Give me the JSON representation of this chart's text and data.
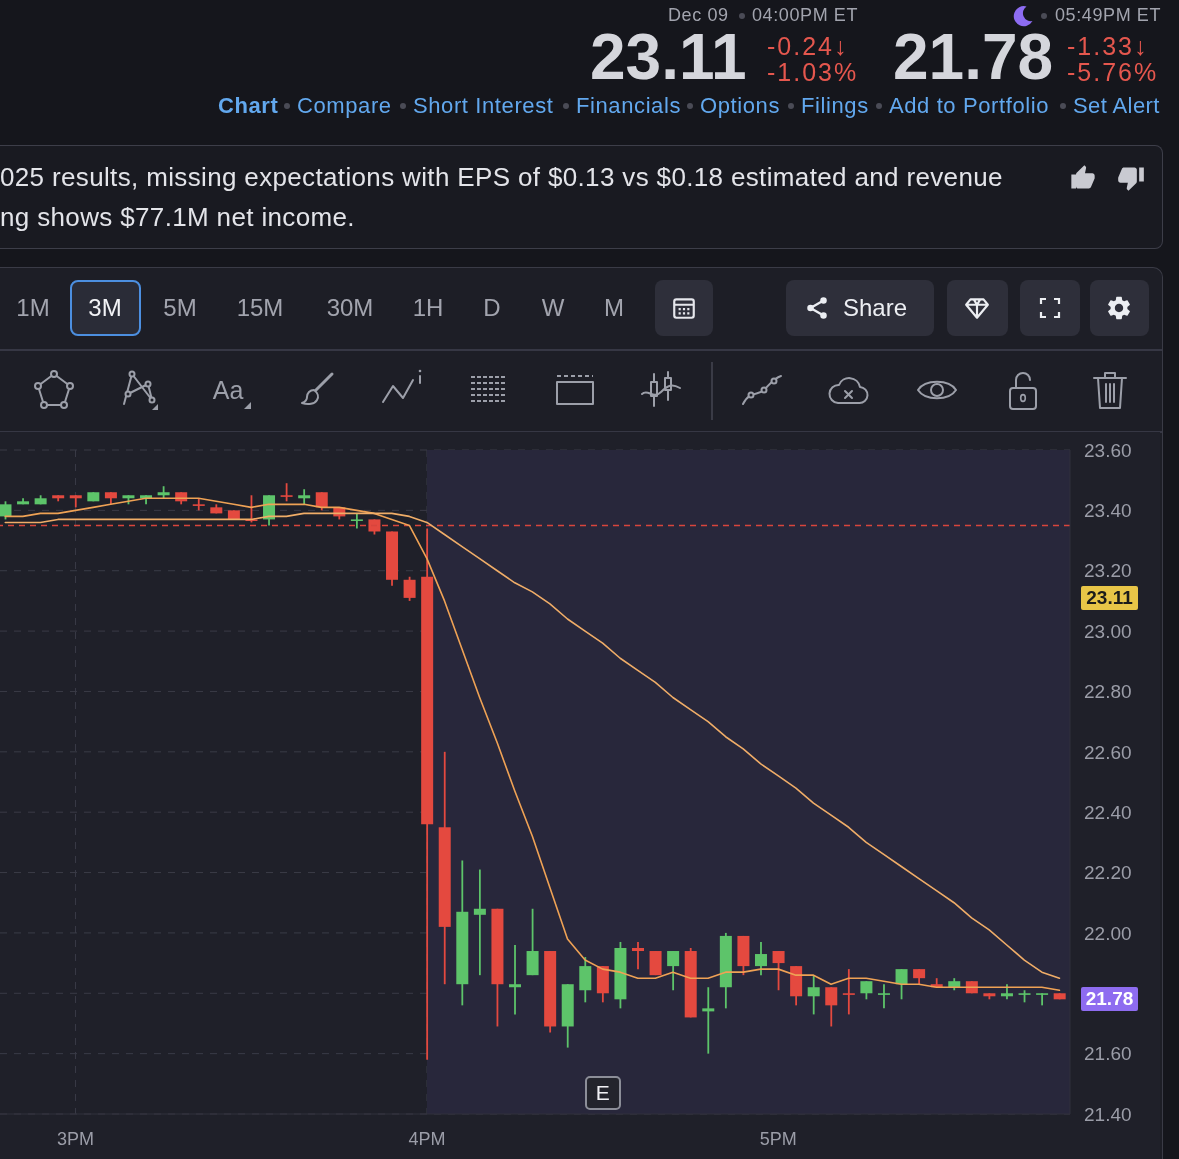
{
  "chart_data": {
    "type": "candlestick",
    "x": [
      2.8,
      2.85,
      2.9,
      2.95,
      3,
      3.05,
      3.1,
      3.15,
      3.2,
      3.25,
      3.3,
      3.35,
      3.4,
      3.45,
      3.5,
      3.55,
      3.6,
      3.65,
      3.7,
      3.75,
      3.8,
      3.85,
      3.9,
      3.95,
      4,
      4.05,
      4.1,
      4.15,
      4.2,
      4.25,
      4.3,
      4.35,
      4.4,
      4.45,
      4.5,
      4.55,
      4.6,
      4.65,
      4.7,
      4.75,
      4.8,
      4.85,
      4.9,
      4.95,
      5,
      5.05,
      5.1,
      5.15,
      5.2,
      5.25,
      5.3,
      5.35,
      5.4,
      5.45,
      5.5,
      5.55,
      5.6,
      5.65,
      5.7,
      5.75,
      5.8
    ],
    "ohlc": [
      [
        23.38,
        23.43,
        23.37,
        23.42
      ],
      [
        23.42,
        23.44,
        23.42,
        23.43
      ],
      [
        23.42,
        23.45,
        23.42,
        23.44
      ],
      [
        23.45,
        23.45,
        23.43,
        23.44
      ],
      [
        23.45,
        23.45,
        23.41,
        23.44
      ],
      [
        23.43,
        23.46,
        23.43,
        23.46
      ],
      [
        23.46,
        23.46,
        23.42,
        23.44
      ],
      [
        23.44,
        23.45,
        23.42,
        23.45
      ],
      [
        23.44,
        23.45,
        23.42,
        23.45
      ],
      [
        23.45,
        23.48,
        23.44,
        23.46
      ],
      [
        23.46,
        23.46,
        23.42,
        23.43
      ],
      [
        23.42,
        23.44,
        23.4,
        23.42
      ],
      [
        23.41,
        23.42,
        23.39,
        23.39
      ],
      [
        23.4,
        23.4,
        23.37,
        23.37
      ],
      [
        23.37,
        23.45,
        23.36,
        23.37
      ],
      [
        23.37,
        23.45,
        23.35,
        23.45
      ],
      [
        23.45,
        23.49,
        23.43,
        23.45
      ],
      [
        23.44,
        23.47,
        23.42,
        23.45
      ],
      [
        23.46,
        23.46,
        23.4,
        23.41
      ],
      [
        23.41,
        23.41,
        23.37,
        23.38
      ],
      [
        23.37,
        23.39,
        23.34,
        23.37
      ],
      [
        23.37,
        23.37,
        23.32,
        23.33
      ],
      [
        23.33,
        23.33,
        23.15,
        23.17
      ],
      [
        23.17,
        23.18,
        23.1,
        23.11
      ],
      [
        23.18,
        23.34,
        21.58,
        22.36
      ],
      [
        22.35,
        22.6,
        21.83,
        22.02
      ],
      [
        21.83,
        22.24,
        21.76,
        22.07
      ],
      [
        22.06,
        22.21,
        21.86,
        22.08
      ],
      [
        22.08,
        22.08,
        21.69,
        21.83
      ],
      [
        21.82,
        21.96,
        21.73,
        21.83
      ],
      [
        21.86,
        22.08,
        21.86,
        21.94
      ],
      [
        21.94,
        21.94,
        21.67,
        21.69
      ],
      [
        21.69,
        21.83,
        21.62,
        21.83
      ],
      [
        21.81,
        21.92,
        21.77,
        21.89
      ],
      [
        21.89,
        21.89,
        21.77,
        21.8
      ],
      [
        21.78,
        21.97,
        21.75,
        21.95
      ],
      [
        21.95,
        21.97,
        21.88,
        21.94
      ],
      [
        21.94,
        21.94,
        21.86,
        21.86
      ],
      [
        21.89,
        21.94,
        21.81,
        21.94
      ],
      [
        21.94,
        21.95,
        21.72,
        21.72
      ],
      [
        21.74,
        21.82,
        21.6,
        21.75
      ],
      [
        21.82,
        22,
        21.75,
        21.99
      ],
      [
        21.99,
        21.99,
        21.86,
        21.89
      ],
      [
        21.89,
        21.97,
        21.86,
        21.93
      ],
      [
        21.94,
        21.94,
        21.81,
        21.9
      ],
      [
        21.89,
        21.89,
        21.76,
        21.79
      ],
      [
        21.79,
        21.86,
        21.73,
        21.82
      ],
      [
        21.82,
        21.82,
        21.69,
        21.76
      ],
      [
        21.8,
        21.88,
        21.73,
        21.8
      ],
      [
        21.8,
        21.84,
        21.78,
        21.84
      ],
      [
        21.8,
        21.83,
        21.75,
        21.8
      ],
      [
        21.83,
        21.88,
        21.78,
        21.88
      ],
      [
        21.88,
        21.88,
        21.83,
        21.85
      ],
      [
        21.83,
        21.85,
        21.82,
        21.82
      ],
      [
        21.82,
        21.85,
        21.81,
        21.84
      ],
      [
        21.84,
        21.84,
        21.8,
        21.8
      ],
      [
        21.8,
        21.8,
        21.78,
        21.79
      ],
      [
        21.79,
        21.83,
        21.78,
        21.8
      ],
      [
        21.8,
        21.81,
        21.77,
        21.8
      ],
      [
        21.8,
        21.8,
        21.76,
        21.8
      ],
      [
        21.8,
        21.8,
        21.78,
        21.78
      ]
    ],
    "colors": [
      "#5dc46a",
      "#5dc46a",
      "#5dc46a",
      "#e4493f",
      "#e4493f",
      "#5dc46a",
      "#e4493f",
      "#5dc46a",
      "#5dc46a",
      "#5dc46a",
      "#e4493f",
      "#e4493f",
      "#e4493f",
      "#e4493f",
      "#e4493f",
      "#5dc46a",
      "#e4493f",
      "#5dc46a",
      "#e4493f",
      "#e4493f",
      "#5dc46a",
      "#e4493f",
      "#e4493f",
      "#e4493f",
      "#e4493f",
      "#e4493f",
      "#5dc46a",
      "#5dc46a",
      "#e4493f",
      "#5dc46a",
      "#5dc46a",
      "#e4493f",
      "#5dc46a",
      "#5dc46a",
      "#e4493f",
      "#5dc46a",
      "#e4493f",
      "#e4493f",
      "#5dc46a",
      "#e4493f",
      "#5dc46a",
      "#5dc46a",
      "#e4493f",
      "#5dc46a",
      "#e4493f",
      "#e4493f",
      "#5dc46a",
      "#e4493f",
      "#e4493f",
      "#5dc46a",
      "#5dc46a",
      "#5dc46a",
      "#e4493f",
      "#e4493f",
      "#5dc46a",
      "#e4493f",
      "#e4493f",
      "#5dc46a",
      "#5dc46a",
      "#5dc46a",
      "#e4493f"
    ],
    "series": [
      {
        "type": "line",
        "color": "#efa255",
        "values": [
          23.38,
          23.38,
          23.39,
          23.39,
          23.4,
          23.41,
          23.42,
          23.43,
          23.44,
          23.44,
          23.44,
          23.44,
          23.43,
          23.42,
          23.41,
          23.42,
          23.42,
          23.42,
          23.41,
          23.41,
          23.4,
          23.39,
          23.37,
          23.35,
          23.24,
          23.1,
          22.94,
          22.78,
          22.63,
          22.47,
          22.32,
          22.15,
          21.98,
          21.91,
          21.88,
          21.87,
          21.85,
          21.85,
          21.87,
          21.85,
          21.85,
          21.87,
          21.87,
          21.88,
          21.88,
          21.86,
          21.86,
          21.83,
          21.85,
          21.85,
          21.84,
          21.83,
          21.83,
          21.82,
          21.82,
          21.82,
          21.82,
          21.82,
          21.82,
          21.82,
          21.81
        ]
      },
      {
        "type": "line",
        "color": "#f0ad68",
        "values": [
          23.36,
          23.36,
          23.36,
          23.37,
          23.37,
          23.37,
          23.37,
          23.37,
          23.37,
          23.37,
          23.37,
          23.37,
          23.37,
          23.37,
          23.37,
          23.38,
          23.38,
          23.39,
          23.39,
          23.39,
          23.39,
          23.39,
          23.39,
          23.38,
          23.36,
          23.32,
          23.28,
          23.24,
          23.2,
          23.16,
          23.13,
          23.09,
          23.04,
          23,
          22.96,
          22.91,
          22.87,
          22.83,
          22.78,
          22.74,
          22.7,
          22.65,
          22.61,
          22.56,
          22.52,
          22.48,
          22.43,
          22.39,
          22.35,
          22.3,
          22.26,
          22.22,
          22.18,
          22.14,
          22.1,
          22.05,
          22.01,
          21.96,
          21.91,
          21.87,
          21.85
        ]
      }
    ],
    "line_style": "solid",
    "xlim": [
      2.785,
      5.83
    ],
    "xticks": [
      {
        "value": 3,
        "label": "3PM"
      },
      {
        "value": 4,
        "label": "4PM"
      },
      {
        "value": 5,
        "label": "5PM"
      }
    ],
    "ylim": [
      21.4,
      23.6
    ],
    "yticks": [
      {
        "value": 21.4,
        "label": "21.40"
      },
      {
        "value": 21.6,
        "label": "21.60"
      },
      {
        "value": 21.8,
        "label": null
      },
      {
        "value": 22,
        "label": "22.00"
      },
      {
        "value": 22.2,
        "label": "22.20"
      },
      {
        "value": 22.4,
        "label": "22.40"
      },
      {
        "value": 22.6,
        "label": "22.60"
      },
      {
        "value": 22.8,
        "label": "22.80"
      },
      {
        "value": 23,
        "label": "23.00"
      },
      {
        "value": 23.2,
        "label": "23.20"
      },
      {
        "value": 23.4,
        "label": "23.40"
      },
      {
        "value": 23.6,
        "label": "23.60"
      }
    ],
    "grid": true,
    "ref_lines": [
      {
        "axis": "y",
        "value": 23.35,
        "color": "#d8453c",
        "line_style": "dashed"
      }
    ],
    "bands": [
      {
        "axis": "x",
        "from": 4,
        "to": 5.83,
        "color": "#28273b"
      }
    ],
    "annotations": [
      "Dec 09",
      "04:00PM ET",
      "05:49PM ET",
      "23.11",
      "-0.24↓",
      "-1.03%",
      "21.78",
      "-1.33↓",
      "-5.76%",
      "Chart",
      "Compare",
      "Short Interest",
      "Financials",
      "Options",
      "Filings",
      "Add to Portfolio",
      "Set Alert",
      "025 results, missing expectations with EPS of $0.13 vs $0.18 estimated and revenue",
      "ng shows $77.1M net income.",
      "1M",
      "3M",
      "5M",
      "15M",
      "30M",
      "1H",
      "D",
      "W",
      "M",
      "Share",
      "Aa",
      "23.11",
      "21.78",
      {
        "text": "E",
        "x": 4.5,
        "y": 21.47
      }
    ]
  }
}
